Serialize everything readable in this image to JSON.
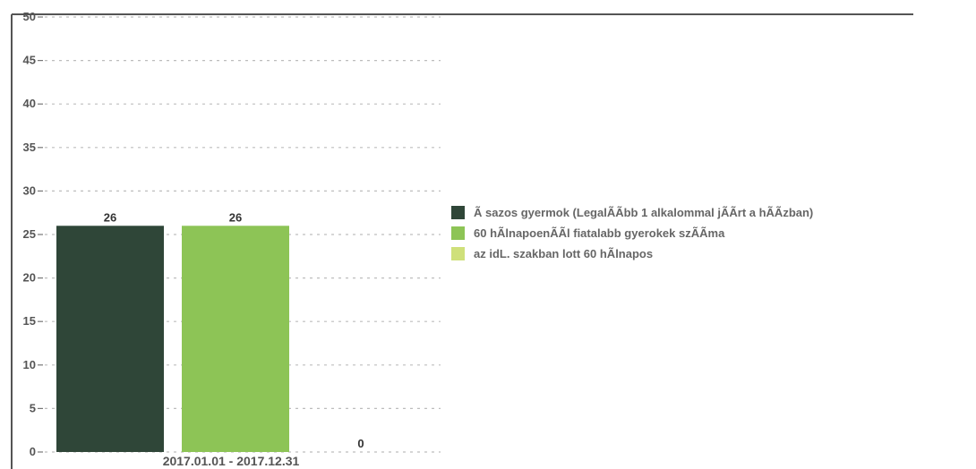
{
  "chart_data": {
    "type": "bar",
    "categories": [
      "2017.01.01 - 2017.12.31"
    ],
    "series": [
      {
        "name": "Ã sazos gyermok (LegalÃÃbb 1 alkalommal jÃÃrt a hÃÃzban)",
        "color": "#2f4638",
        "values": [
          26
        ]
      },
      {
        "name": "60 hÃlnapoenÃÃl fiatalabb gyerokek szÃÃma",
        "color": "#8dc456",
        "values": [
          26
        ]
      },
      {
        "name": "az idL. szakban lott 60 hÃlnapos",
        "color": "#cfe07a",
        "values": [
          0
        ]
      }
    ],
    "value_labels": [
      "26",
      "26",
      "0"
    ],
    "ylim": [
      0,
      50
    ],
    "yticks": [
      0,
      5,
      10,
      15,
      20,
      25,
      30,
      35,
      40,
      45,
      50
    ],
    "ytick_labels": [
      "0",
      "5",
      "10",
      "15",
      "20",
      "25",
      "30",
      "35",
      "40",
      "45",
      "50"
    ],
    "grid": true,
    "legend_position": "right",
    "title": "",
    "xlabel": "",
    "ylabel": ""
  }
}
